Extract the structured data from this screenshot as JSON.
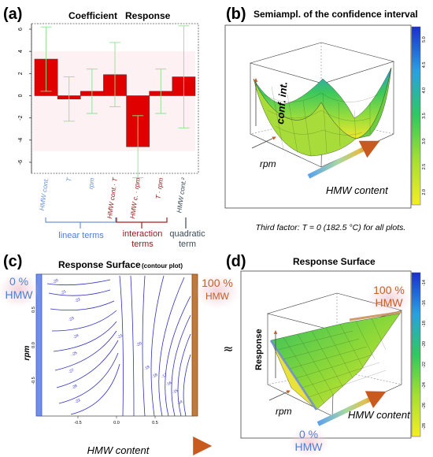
{
  "panels": {
    "a": {
      "letter": "(a)",
      "title": "Coefficient   Response"
    },
    "b": {
      "letter": "(b)",
      "title": "Semiampl. of the confidence interval"
    },
    "c": {
      "letter": "(c)",
      "title": "Response Surface",
      "subtitle": "(contour plot)"
    },
    "d": {
      "letter": "(d)",
      "title": "Response Surface"
    }
  },
  "note": "Third factor: T = 0 (182.5 °C) for all plots.",
  "groups": {
    "linear": "linear terms",
    "interaction_1": "interaction",
    "interaction_2": "terms",
    "quadratic_1": "quadratic",
    "quadratic_2": "term"
  },
  "annotations": {
    "c_left_1": "0 %",
    "c_left_2": "HMW",
    "c_right_1": "100 %",
    "c_right_2": "HMW",
    "c_xlabel": "HMW content",
    "c_ylabel": "rpm",
    "approx": "≈",
    "b_zlabel": "conf. int.",
    "b_rpm": "rpm",
    "b_hmw": "HMW content",
    "d_zlabel": "Response",
    "d_rpm": "rpm",
    "d_hmw": "HMW content",
    "d_top_1": "100 %",
    "d_top_2": "HMW",
    "d_bot_1": "0 %",
    "d_bot_2": "HMW"
  },
  "colors": {
    "bar": "#e00000",
    "errorbar": "#90e090",
    "contour": "#3030c0",
    "blue_band": "#6f8fe8",
    "orange_band": "#c07a3a",
    "label_blue": "#4f7fd0",
    "label_red": "#8b1a1a",
    "label_orange": "#c0602a",
    "label_gray": "#3a4a5a"
  },
  "chart_data": [
    {
      "type": "bar",
      "title": "Coefficient   Response",
      "categories": [
        "HMW cont.",
        "T",
        "rpm",
        "HMW cont.· T",
        "HMW c. · rpm",
        "T · rpm",
        "HMW cont.²"
      ],
      "values": [
        3.3,
        -0.3,
        0.4,
        1.9,
        -4.6,
        0.4,
        1.7
      ],
      "ci": [
        2.9,
        2.0,
        2.0,
        2.9,
        2.8,
        2.0,
        4.6
      ],
      "ylim": [
        -7,
        6.5
      ],
      "yticks": [
        -6,
        -4,
        -2,
        0,
        2,
        4,
        6
      ],
      "ytick_labels": [
        "-6",
        "-4",
        "-2",
        "0",
        "2",
        "4",
        "6"
      ],
      "grid": false
    },
    {
      "type": "contour",
      "title": "Response Surface (contour plot)",
      "xlabel": "HMW content",
      "ylabel": "rpm",
      "xlim": [
        -1,
        1
      ],
      "ylim": [
        -1,
        1
      ],
      "xticks": [
        "-0.5",
        "0.0",
        "0.5"
      ],
      "yticks": [
        "-0.5",
        "0.0",
        "0.5"
      ],
      "contour_labels": [
        "-20",
        "-21",
        "-22",
        "-23",
        "-24",
        "-25",
        "-27",
        "-28",
        "-22",
        "-21",
        "-20",
        "-19",
        "-18",
        "-17",
        "-16",
        "-15",
        "-14"
      ]
    },
    {
      "type": "surface",
      "title": "Semiampl. of the confidence interval",
      "zlabel": "conf. int.",
      "colorbar_ticks": [
        "5.0",
        "4.5",
        "4.0",
        "3.5",
        "3.0",
        "2.5",
        "2.0"
      ]
    },
    {
      "type": "surface",
      "title": "Response Surface",
      "zlabel": "Response",
      "colorbar_ticks": [
        "-14",
        "-16",
        "-18",
        "-20",
        "-22",
        "-24",
        "-26",
        "-28"
      ]
    }
  ]
}
